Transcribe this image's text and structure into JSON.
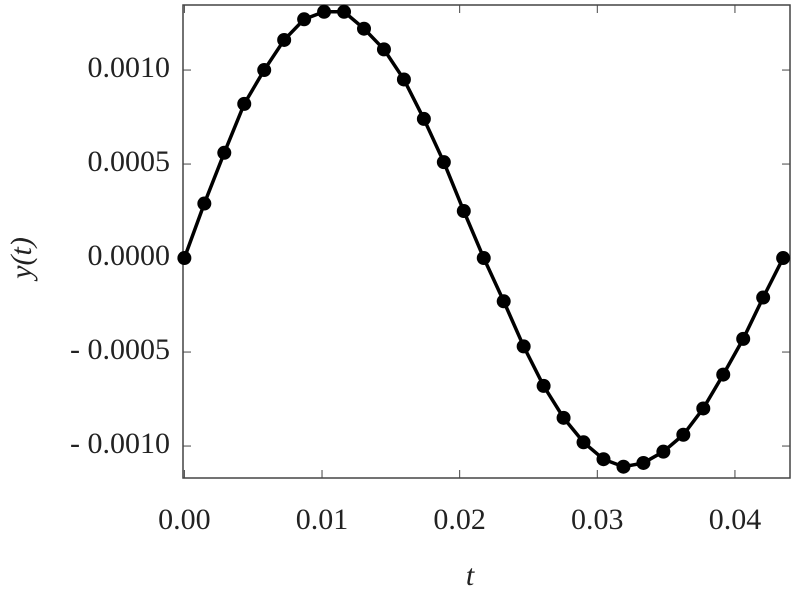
{
  "chart_data": {
    "type": "line",
    "x_label": "t",
    "y_label": "y(t)",
    "x": [
      0,
      0.00145,
      0.0029,
      0.00435,
      0.0058,
      0.00725,
      0.0087,
      0.01015,
      0.0116,
      0.01305,
      0.0145,
      0.01595,
      0.0174,
      0.01885,
      0.0203,
      0.02175,
      0.0232,
      0.02465,
      0.0261,
      0.02755,
      0.029,
      0.03045,
      0.0319,
      0.03335,
      0.0348,
      0.03625,
      0.0377,
      0.03915,
      0.0406,
      0.04205,
      0.0435
    ],
    "series": [
      {
        "color": "#000000",
        "values": [
          0,
          0.00029,
          0.00056,
          0.00082,
          0.001,
          0.00116,
          0.00127,
          0.00131,
          0.00131,
          0.00122,
          0.00111,
          0.00095,
          0.00074,
          0.00051,
          0.00025,
          0,
          -0.00023,
          -0.00047,
          -0.00068,
          -0.00085,
          -0.00098,
          -0.00107,
          -0.00111,
          -0.00109,
          -0.00103,
          -0.00094,
          -0.0008,
          -0.00062,
          -0.00043,
          -0.00021,
          0
        ]
      }
    ],
    "xlim": [
      -0.0001,
      0.044
    ],
    "ylim": [
      -0.00117,
      0.001346
    ],
    "xticks": [
      {
        "value": 0,
        "label": "0.00"
      },
      {
        "value": 0.01,
        "label": "0.01"
      },
      {
        "value": 0.02,
        "label": "0.02"
      },
      {
        "value": 0.03,
        "label": "0.03"
      },
      {
        "value": 0.04,
        "label": "0.04"
      }
    ],
    "yticks": [
      {
        "value": -0.001,
        "label": "- 0.0010"
      },
      {
        "value": -0.0005,
        "label": "- 0.0005"
      },
      {
        "value": 0,
        "label": "0.0000"
      },
      {
        "value": 0.0005,
        "label": "0.0005"
      },
      {
        "value": 0.001,
        "label": "0.0010"
      }
    ]
  }
}
